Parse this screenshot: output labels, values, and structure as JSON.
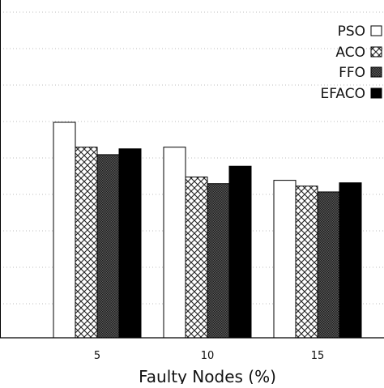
{
  "chart_data": {
    "type": "bar",
    "categories": [
      "5",
      "10",
      "15"
    ],
    "xlabel": "Faulty Nodes (%)",
    "ylabel": "",
    "title": "",
    "grid": "horizontal dotted",
    "legend_position": "top-right",
    "series": [
      {
        "name": "PSO",
        "pattern": "white",
        "values": [
          2.6,
          2.3,
          1.9
        ]
      },
      {
        "name": "ACO",
        "pattern": "crosshatch",
        "values": [
          2.3,
          1.94,
          1.83
        ]
      },
      {
        "name": "FFO",
        "pattern": "dotted",
        "values": [
          2.21,
          1.86,
          1.76
        ]
      },
      {
        "name": "EFACO",
        "pattern": "black",
        "values": [
          2.28,
          2.07,
          1.87
        ]
      }
    ]
  }
}
